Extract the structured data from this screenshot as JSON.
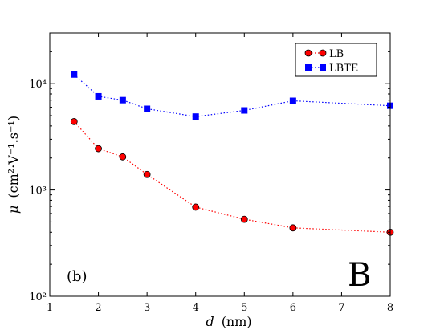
{
  "chart_data": {
    "type": "line",
    "yscale": "log",
    "xlim": [
      1,
      8
    ],
    "ylim": [
      100,
      30000
    ],
    "x_ticks": [
      1,
      2,
      3,
      4,
      5,
      6,
      7,
      8
    ],
    "x_tick_labels": [
      "1",
      "2",
      "3",
      "4",
      "5",
      "6",
      "7",
      "8"
    ],
    "y_ticks": [
      100,
      1000,
      10000
    ],
    "y_tick_labels": [
      "10²",
      "10³",
      "10⁴"
    ],
    "xlabel": {
      "symbol": "d",
      "unit": "(nm)"
    },
    "ylabel": {
      "symbol": "μ",
      "unit": "(cm²·V⁻¹.s⁻¹)"
    },
    "legend_position": "top-right",
    "annotations": {
      "panel": "(b)",
      "letter": "B"
    },
    "grid": false,
    "series": [
      {
        "name": "LB",
        "color": "#ff0000",
        "marker": "circle",
        "line_color": "#ff0000",
        "x": [
          1.5,
          2,
          2.5,
          3,
          4,
          5,
          6,
          8
        ],
        "y": [
          4400,
          2450,
          2050,
          1400,
          690,
          530,
          440,
          400
        ]
      },
      {
        "name": "LBTE",
        "color": "#0000ff",
        "marker": "square",
        "line_color": "#0000ff",
        "x": [
          1.5,
          2,
          2.5,
          3,
          4,
          5,
          6,
          8
        ],
        "y": [
          12200,
          7600,
          7000,
          5800,
          4900,
          5600,
          6900,
          6200
        ]
      }
    ]
  }
}
